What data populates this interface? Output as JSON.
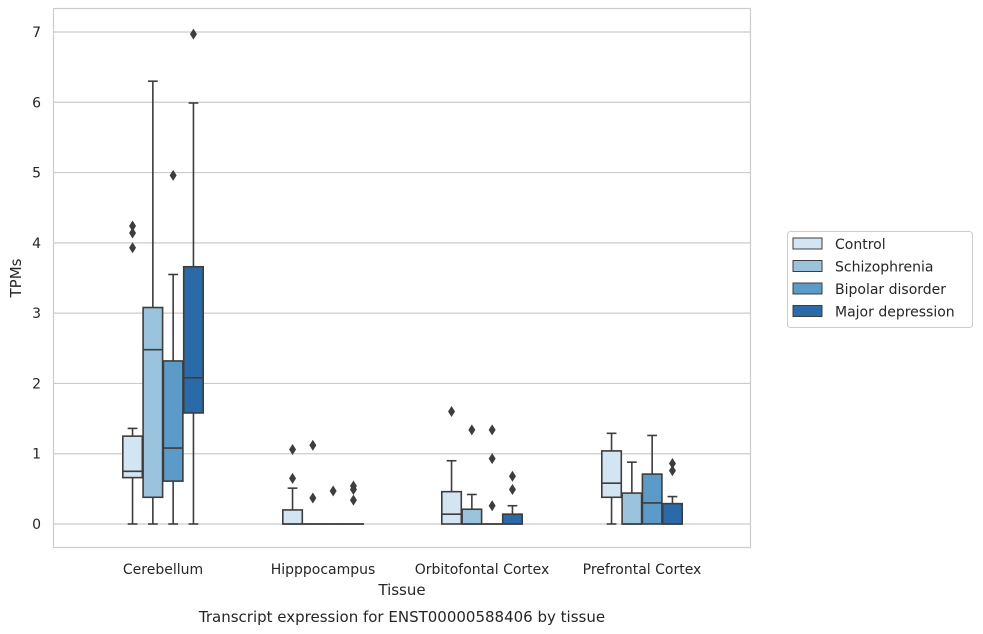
{
  "caption": "Transcript expression for ENST00000588406 by tissue",
  "chart_data": {
    "type": "box",
    "xlabel": "Tissue",
    "ylabel": "TPMs",
    "ylim": [
      -0.35,
      7.35
    ],
    "yticks": [
      0,
      1,
      2,
      3,
      4,
      5,
      6,
      7
    ],
    "grid": "horizontal",
    "legend_position": "right",
    "categories": [
      "Cerebellum",
      "Hipppocampus",
      "Orbitofontal Cortex",
      "Prefrontal Cortex"
    ],
    "series": [
      {
        "name": "Control",
        "color": "#d3e4f3",
        "boxes": [
          {
            "whisker_low": 0,
            "q1": 0.66,
            "median": 0.75,
            "q3": 1.25,
            "whisker_high": 1.36,
            "outliers": [
              3.93,
              4.14,
              4.24
            ]
          },
          {
            "whisker_low": 0,
            "q1": 0,
            "median": 0,
            "q3": 0.2,
            "whisker_high": 0.51,
            "outliers": [
              0.65,
              1.06
            ]
          },
          {
            "whisker_low": 0,
            "q1": 0,
            "median": 0.14,
            "q3": 0.46,
            "whisker_high": 0.9,
            "outliers": [
              1.6
            ]
          },
          {
            "whisker_low": 0,
            "q1": 0.38,
            "median": 0.58,
            "q3": 1.04,
            "whisker_high": 1.29,
            "outliers": []
          }
        ]
      },
      {
        "name": "Schizophrenia",
        "color": "#9cc3de",
        "boxes": [
          {
            "whisker_low": 0,
            "q1": 0.38,
            "median": 2.48,
            "q3": 3.08,
            "whisker_high": 6.3,
            "outliers": []
          },
          {
            "whisker_low": 0,
            "q1": 0,
            "median": 0,
            "q3": 0,
            "whisker_high": 0,
            "outliers": [
              0.37,
              1.12
            ]
          },
          {
            "whisker_low": 0,
            "q1": 0,
            "median": 0,
            "q3": 0.21,
            "whisker_high": 0.42,
            "outliers": [
              1.34
            ]
          },
          {
            "whisker_low": 0,
            "q1": 0,
            "median": 0,
            "q3": 0.44,
            "whisker_high": 0.88,
            "outliers": []
          }
        ]
      },
      {
        "name": "Bipolar disorder",
        "color": "#5b9ac9",
        "boxes": [
          {
            "whisker_low": 0,
            "q1": 0.61,
            "median": 1.08,
            "q3": 2.32,
            "whisker_high": 3.55,
            "outliers": [
              4.96
            ]
          },
          {
            "whisker_low": 0,
            "q1": 0,
            "median": 0,
            "q3": 0,
            "whisker_high": 0,
            "outliers": [
              0.47
            ]
          },
          {
            "whisker_low": 0,
            "q1": 0,
            "median": 0,
            "q3": 0,
            "whisker_high": 0,
            "outliers": [
              0.26,
              0.93,
              1.34
            ]
          },
          {
            "whisker_low": 0,
            "q1": 0,
            "median": 0.3,
            "q3": 0.71,
            "whisker_high": 1.26,
            "outliers": []
          }
        ]
      },
      {
        "name": "Major depression",
        "color": "#2a6aa8",
        "boxes": [
          {
            "whisker_low": 0,
            "q1": 1.58,
            "median": 2.08,
            "q3": 3.66,
            "whisker_high": 5.99,
            "outliers": [
              6.97
            ]
          },
          {
            "whisker_low": 0,
            "q1": 0,
            "median": 0,
            "q3": 0,
            "whisker_high": 0,
            "outliers": [
              0.34,
              0.49,
              0.54
            ]
          },
          {
            "whisker_low": 0,
            "q1": 0,
            "median": 0,
            "q3": 0.14,
            "whisker_high": 0.26,
            "outliers": [
              0.49,
              0.68
            ]
          },
          {
            "whisker_low": 0,
            "q1": 0,
            "median": 0,
            "q3": 0.29,
            "whisker_high": 0.39,
            "outliers": [
              0.76,
              0.86
            ]
          }
        ]
      }
    ]
  }
}
